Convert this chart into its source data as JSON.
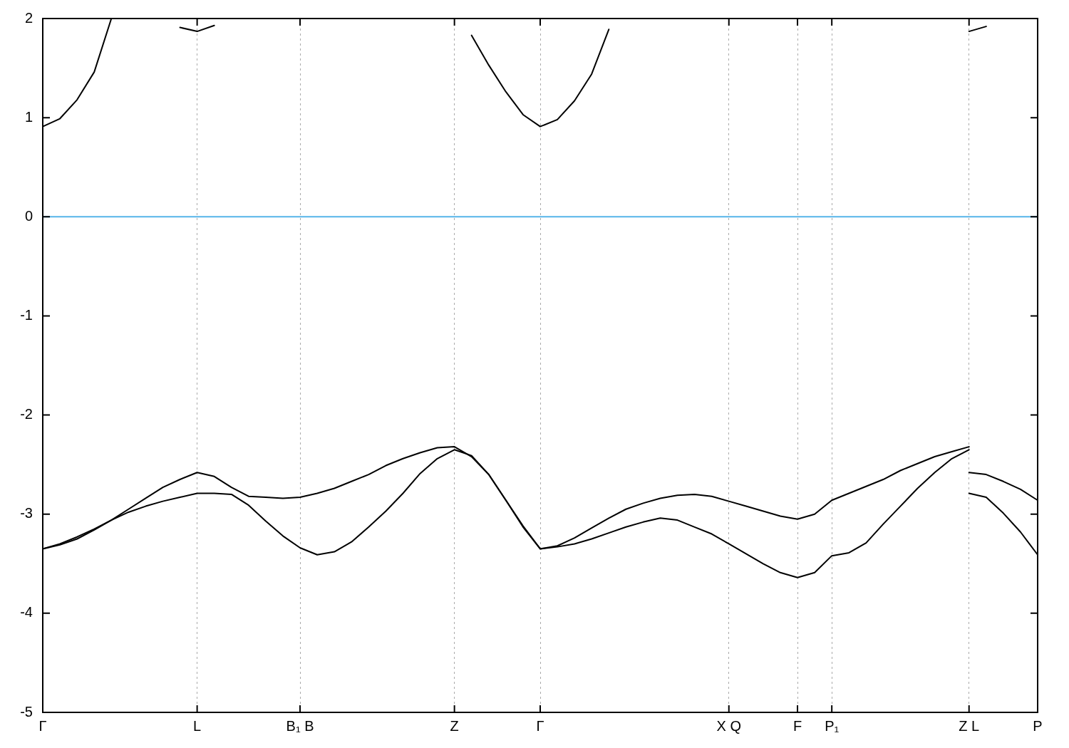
{
  "chart_data": {
    "type": "line",
    "ylim": [
      -5,
      2
    ],
    "categories": [
      "Γ",
      null,
      null,
      null,
      null,
      null,
      null,
      null,
      null,
      "L",
      null,
      null,
      null,
      null,
      null,
      "B₁ B",
      null,
      null,
      null,
      null,
      null,
      null,
      null,
      null,
      "Z",
      null,
      null,
      null,
      null,
      "Γ",
      null,
      null,
      null,
      null,
      null,
      null,
      null,
      null,
      null,
      null,
      "X Q",
      null,
      null,
      null,
      "F",
      null,
      "P₁",
      null,
      null,
      null,
      null,
      null,
      null,
      null,
      "Z L",
      null,
      null,
      null,
      "P"
    ],
    "yticks": [
      -5,
      -4,
      -3,
      -2,
      -1,
      0,
      1,
      2
    ],
    "grid": "x",
    "ref_lines": [
      {
        "axis": "y",
        "value": 0,
        "color": "#56b4e9"
      }
    ],
    "series": [
      {
        "color": "#000000",
        "values": [
          -3.35,
          -3.31,
          -3.25,
          -3.16,
          -3.06,
          -2.95,
          -2.84,
          -2.73,
          -2.65,
          -2.58,
          -2.62,
          -2.73,
          -2.82,
          -2.83,
          -2.84,
          -2.83,
          -2.79,
          -2.74,
          -2.67,
          -2.6,
          -2.51,
          -2.44,
          -2.38,
          -2.33,
          -2.32,
          -2.42,
          -2.6,
          -2.86,
          -3.13,
          -3.35,
          -3.32,
          -3.24,
          -3.14,
          -3.04,
          -2.95,
          -2.89,
          -2.84,
          -2.81,
          -2.8,
          -2.82,
          -2.87,
          -2.92,
          -2.97,
          -3.02,
          -3.05,
          -3.0,
          -2.86,
          -2.79,
          -2.72,
          -2.65,
          -2.56,
          -2.49,
          -2.42,
          -2.37,
          -2.32,
          null,
          null,
          null,
          null
        ]
      },
      {
        "color": "#000000",
        "values": [
          null,
          null,
          null,
          null,
          null,
          null,
          null,
          null,
          null,
          null,
          null,
          null,
          null,
          null,
          null,
          null,
          null,
          null,
          null,
          null,
          null,
          null,
          null,
          null,
          null,
          null,
          null,
          null,
          null,
          null,
          null,
          null,
          null,
          null,
          null,
          null,
          null,
          null,
          null,
          null,
          null,
          null,
          null,
          null,
          null,
          null,
          null,
          null,
          null,
          null,
          null,
          null,
          null,
          null,
          -2.58,
          -2.6,
          -2.67,
          -2.75,
          -2.86
        ]
      },
      {
        "color": "#000000",
        "values": [
          -3.35,
          -3.3,
          -3.23,
          -3.15,
          -3.06,
          -2.98,
          -2.92,
          -2.87,
          -2.83,
          -2.79,
          -2.79,
          -2.8,
          -2.91,
          -3.07,
          -3.22,
          -3.34,
          -3.41,
          -3.38,
          -3.28,
          -3.13,
          -2.97,
          -2.79,
          -2.59,
          -2.44,
          -2.35,
          -2.41,
          -2.6,
          -2.86,
          -3.12,
          -3.35,
          -3.33,
          -3.3,
          -3.25,
          -3.19,
          -3.13,
          -3.08,
          -3.04,
          -3.06,
          -3.13,
          -3.2,
          -3.3,
          -3.4,
          -3.5,
          -3.59,
          -3.64,
          -3.59,
          -3.42,
          -3.39,
          -3.29,
          -3.1,
          -2.92,
          -2.74,
          -2.58,
          -2.44,
          -2.35,
          null,
          null,
          null,
          null
        ]
      },
      {
        "color": "#000000",
        "values": [
          null,
          null,
          null,
          null,
          null,
          null,
          null,
          null,
          null,
          null,
          null,
          null,
          null,
          null,
          null,
          null,
          null,
          null,
          null,
          null,
          null,
          null,
          null,
          null,
          null,
          null,
          null,
          null,
          null,
          null,
          null,
          null,
          null,
          null,
          null,
          null,
          null,
          null,
          null,
          null,
          null,
          null,
          null,
          null,
          null,
          null,
          null,
          null,
          null,
          null,
          null,
          null,
          null,
          null,
          -2.79,
          -2.83,
          -2.99,
          -3.18,
          -3.41
        ]
      },
      {
        "color": "#000000",
        "values": [
          0.91,
          0.99,
          1.18,
          1.46,
          2.0,
          null,
          null,
          null,
          1.91,
          1.87,
          1.93,
          null,
          null,
          null,
          null,
          null,
          null,
          null,
          null,
          null,
          null,
          null,
          null,
          null,
          null,
          1.83,
          1.53,
          1.26,
          1.03,
          0.91,
          0.98,
          1.17,
          1.44,
          1.89,
          null,
          null,
          null,
          null,
          null,
          null,
          null,
          null,
          null,
          null,
          null,
          null,
          null,
          null,
          null,
          null,
          null,
          null,
          null,
          null,
          1.87,
          1.92,
          null,
          null,
          null
        ]
      }
    ]
  }
}
